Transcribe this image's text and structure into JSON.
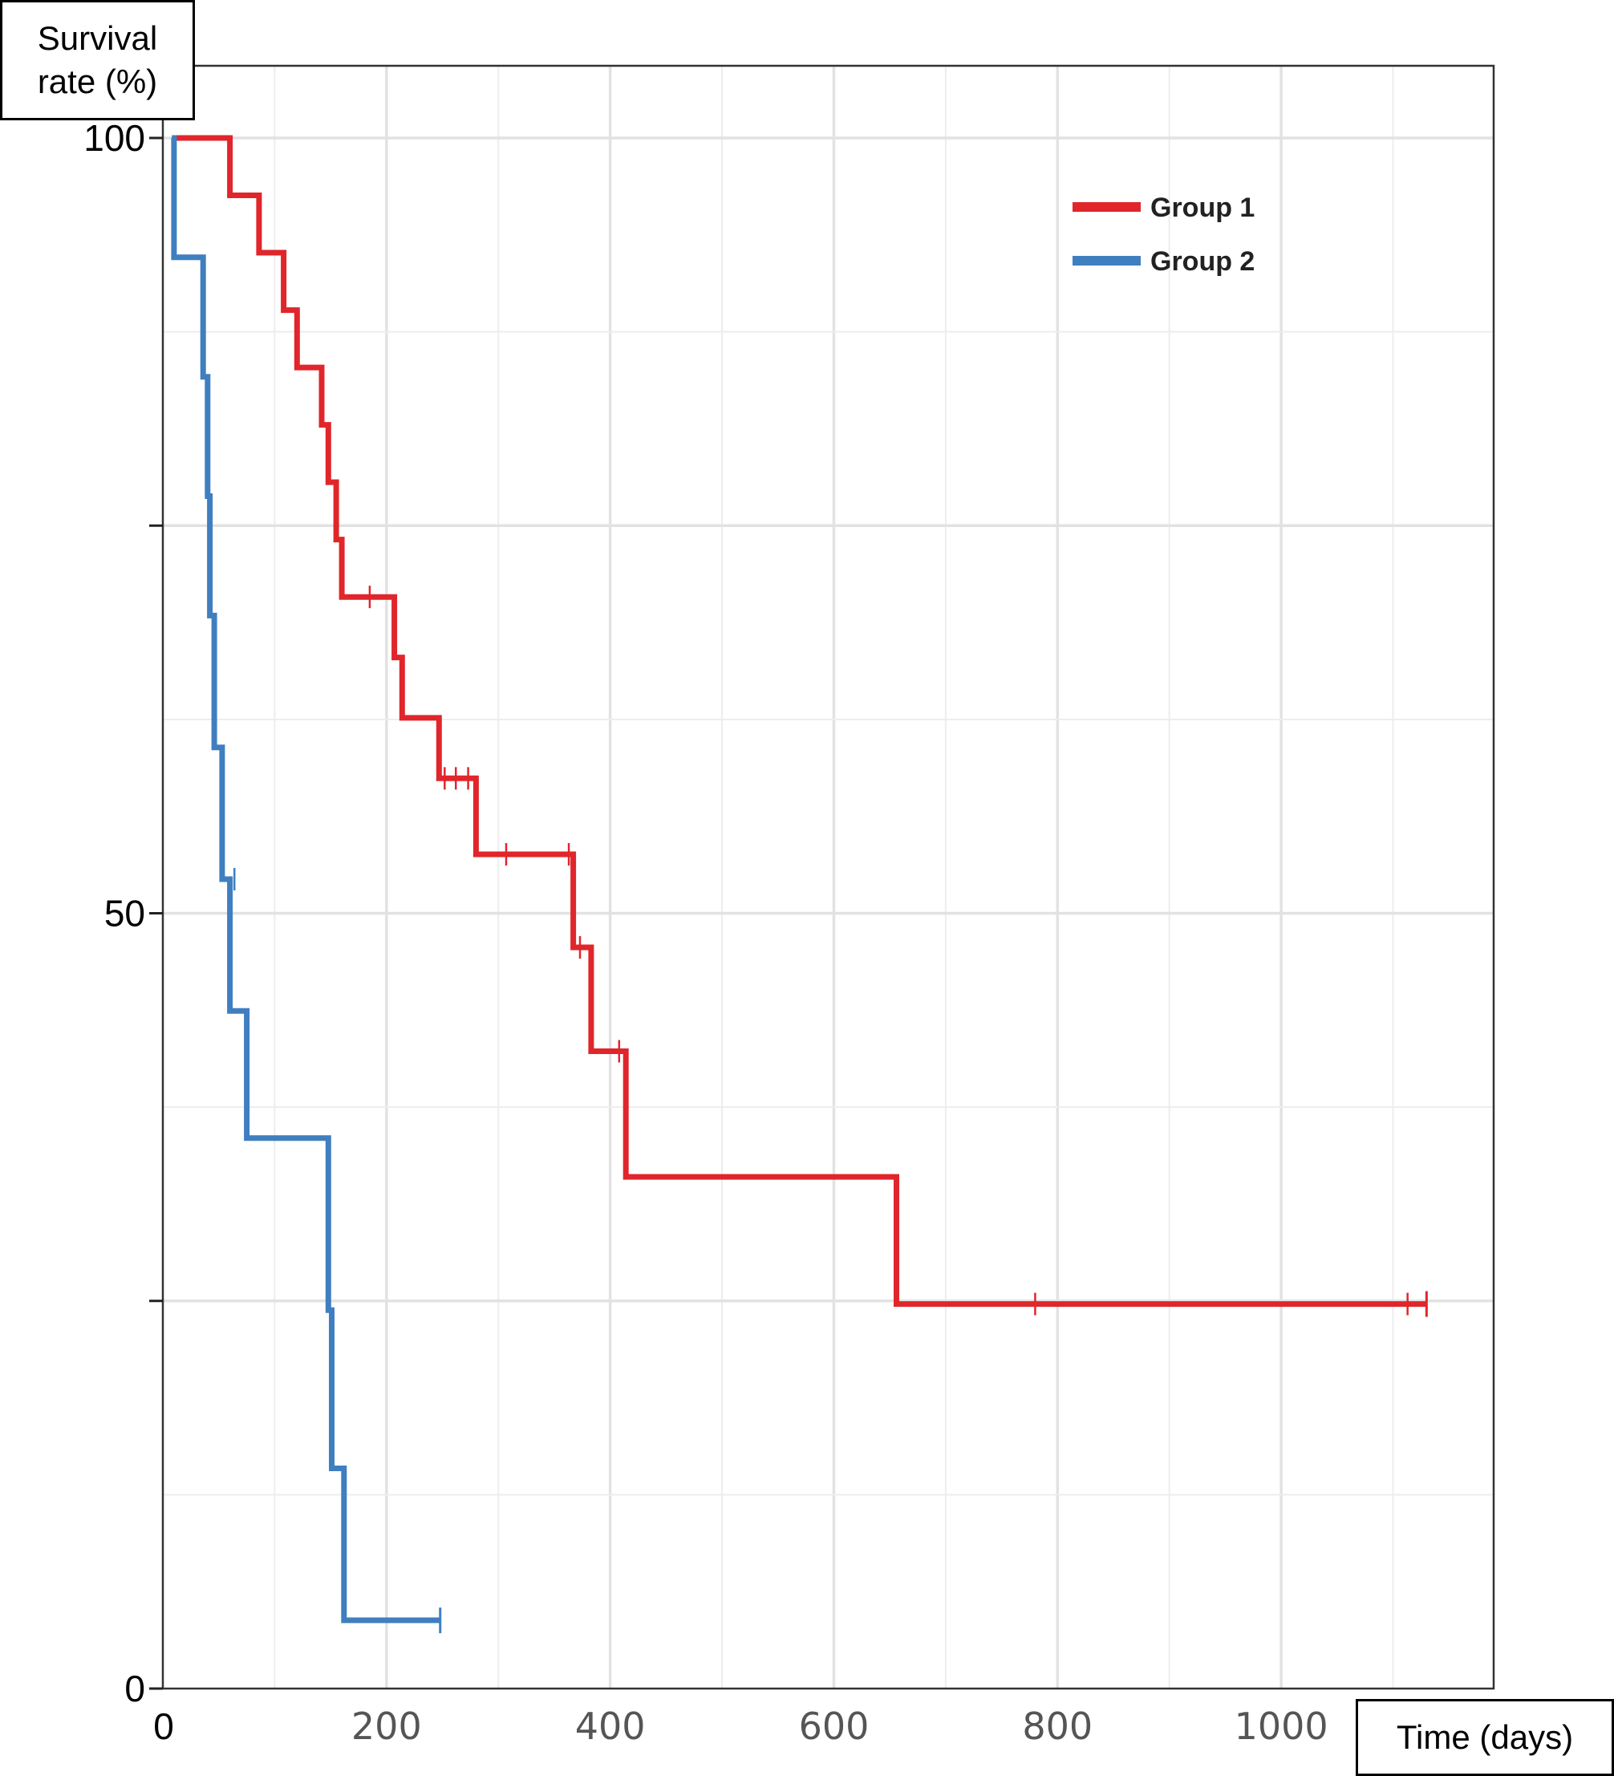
{
  "chart_data": {
    "type": "line",
    "step": true,
    "xlabel": "Time (days)",
    "ylabel_lines": [
      "Survival",
      "rate (%)"
    ],
    "xlim": [
      0,
      1190
    ],
    "ylim": [
      0,
      100
    ],
    "x_ticks": [
      0,
      200,
      400,
      600,
      800,
      1000
    ],
    "x_tick_labels": [
      "0",
      "200",
      "400",
      "600",
      "800",
      "1000"
    ],
    "y_ticks": [
      0,
      25,
      50,
      75,
      100
    ],
    "y_tick_labels": [
      "0",
      "",
      "50",
      "",
      "100"
    ],
    "grid": true,
    "legend_position": "top-right",
    "series": [
      {
        "name": "Group 1",
        "color": "#e0262b",
        "x": [
          12,
          60,
          86,
          108,
          120,
          142,
          148,
          155,
          160,
          207,
          214,
          247,
          280,
          367,
          383,
          414,
          656,
          1130
        ],
        "y": [
          100,
          96.3,
          92.6,
          88.9,
          85.2,
          81.5,
          77.8,
          74.1,
          70.4,
          66.5,
          62.6,
          58.7,
          53.8,
          47.8,
          41.1,
          33,
          24.8,
          24.8
        ],
        "censored": [
          {
            "x": 185,
            "y": 70.4
          },
          {
            "x": 252,
            "y": 58.7
          },
          {
            "x": 262,
            "y": 58.7
          },
          {
            "x": 273,
            "y": 58.7
          },
          {
            "x": 307,
            "y": 53.8
          },
          {
            "x": 363,
            "y": 53.8
          },
          {
            "x": 373,
            "y": 47.8
          },
          {
            "x": 408,
            "y": 41.1
          },
          {
            "x": 780,
            "y": 24.8
          },
          {
            "x": 1113,
            "y": 24.8
          }
        ]
      },
      {
        "name": "Group 2",
        "color": "#3f7fc0",
        "x": [
          8,
          10,
          36,
          40,
          42,
          46,
          53,
          60,
          75,
          148,
          151,
          162,
          248
        ],
        "y": [
          100,
          92.3,
          84.6,
          76.9,
          69.2,
          60.7,
          52.2,
          43.7,
          35.5,
          24.4,
          14.2,
          4.4,
          4.4
        ],
        "censored": [
          {
            "x": 64,
            "y": 52.2
          }
        ]
      }
    ]
  }
}
